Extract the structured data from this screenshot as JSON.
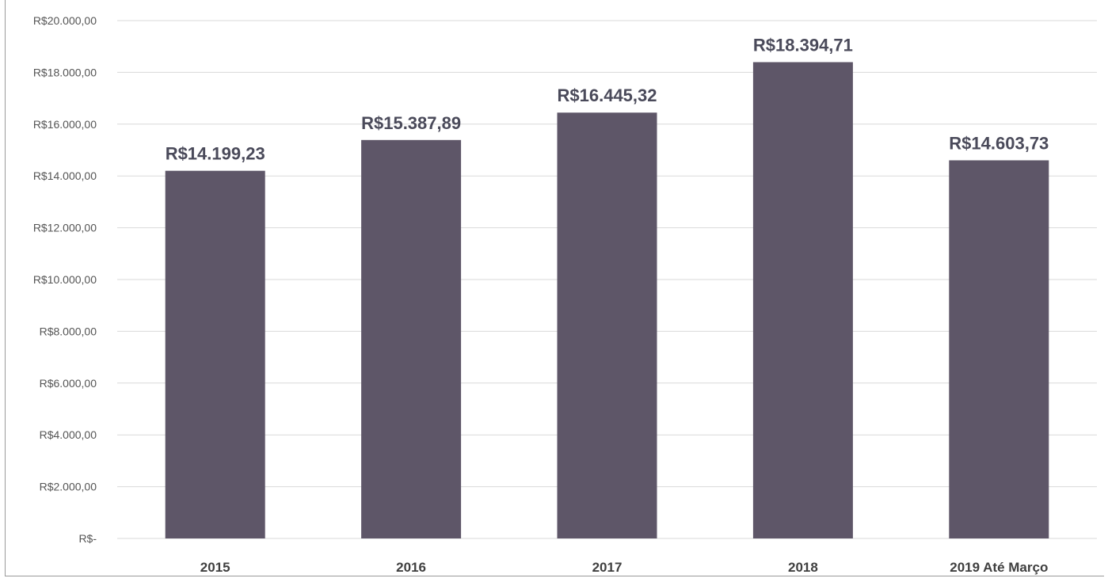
{
  "chart_data": {
    "type": "bar",
    "categories": [
      "2015",
      "2016",
      "2017",
      "2018",
      "2019 Até Março"
    ],
    "values": [
      14199.23,
      15387.89,
      16445.32,
      18394.71,
      14603.73
    ],
    "data_labels": [
      "R$14.199,23",
      "R$15.387,89",
      "R$16.445,32",
      "R$18.394,71",
      "R$14.603,73"
    ],
    "y_ticks": [
      0,
      2000,
      4000,
      6000,
      8000,
      10000,
      12000,
      14000,
      16000,
      18000,
      20000
    ],
    "y_tick_labels": [
      "R$-",
      "R$2.000,00",
      "R$4.000,00",
      "R$6.000,00",
      "R$8.000,00",
      "R$10.000,00",
      "R$12.000,00",
      "R$14.000,00",
      "R$16.000,00",
      "R$18.000,00",
      "R$20.000,00"
    ],
    "ylim": [
      0,
      20000
    ],
    "title": "",
    "xlabel": "",
    "ylabel": "",
    "grid": true,
    "legend": "none",
    "bar_color": "#5e5668"
  }
}
